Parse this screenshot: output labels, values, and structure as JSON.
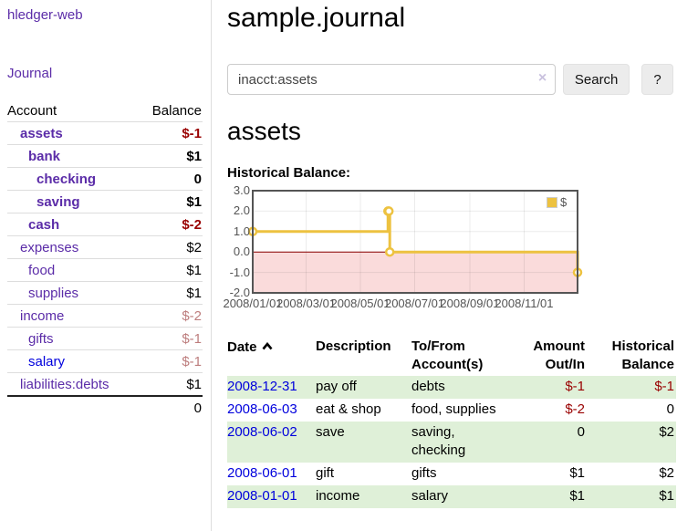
{
  "app": {
    "title": "hledger-web",
    "nav_journal": "Journal"
  },
  "sidebar": {
    "accounts_header": {
      "account": "Account",
      "balance": "Balance"
    },
    "accounts": [
      {
        "name": "assets",
        "balance": "$-1",
        "indent": 1,
        "bold": true,
        "balance_class": "amt-neg"
      },
      {
        "name": "bank",
        "balance": "$1",
        "indent": 2,
        "bold": true,
        "balance_class": "amt-normal"
      },
      {
        "name": "checking",
        "balance": "0",
        "indent": 3,
        "bold": true,
        "balance_class": "amt-normal"
      },
      {
        "name": "saving",
        "balance": "$1",
        "indent": 3,
        "bold": true,
        "balance_class": "amt-normal"
      },
      {
        "name": "cash",
        "balance": "$-2",
        "indent": 2,
        "bold": true,
        "balance_class": "amt-neg"
      },
      {
        "name": "expenses",
        "balance": "$2",
        "indent": 1,
        "bold": false,
        "balance_class": "amt-normal"
      },
      {
        "name": "food",
        "balance": "$1",
        "indent": 2,
        "bold": false,
        "balance_class": "amt-normal"
      },
      {
        "name": "supplies",
        "balance": "$1",
        "indent": 2,
        "bold": false,
        "balance_class": "amt-normal"
      },
      {
        "name": "income",
        "balance": "$-2",
        "indent": 1,
        "bold": false,
        "balance_class": "amt-muted"
      },
      {
        "name": "gifts",
        "balance": "$-1",
        "indent": 2,
        "bold": false,
        "balance_class": "amt-muted"
      },
      {
        "name": "salary",
        "balance": "$-1",
        "indent": 2,
        "bold": false,
        "balance_class": "amt-muted",
        "link_blue": true
      },
      {
        "name": "liabilities:debts",
        "balance": "$1",
        "indent": 1,
        "bold": false,
        "balance_class": "amt-normal"
      }
    ],
    "total": "0"
  },
  "header": {
    "title": "sample.journal"
  },
  "search": {
    "value": "inacct:assets",
    "clear_icon": "×",
    "button_label": "Search",
    "help_label": "?"
  },
  "account_page": {
    "title": "assets",
    "chart_label": "Historical Balance:"
  },
  "chart_data": {
    "type": "line",
    "step": true,
    "title": "Historical Balance:",
    "series": [
      {
        "name": "$",
        "color": "#edc240",
        "points": [
          {
            "date": "2008-01-01",
            "value": 1
          },
          {
            "date": "2008-06-01",
            "value": 2
          },
          {
            "date": "2008-06-02",
            "value": 2
          },
          {
            "date": "2008-06-03",
            "value": 0
          },
          {
            "date": "2008-12-31",
            "value": -1
          }
        ]
      }
    ],
    "xrange": [
      "2008-01-01",
      "2008-12-31"
    ],
    "ylim": [
      -2,
      3
    ],
    "yticks": [
      3,
      2,
      1,
      0,
      -1,
      -2
    ],
    "ytick_labels": [
      "3.0",
      "2.0",
      "1.0",
      "0.0",
      "-1.0",
      "-2.0"
    ],
    "xticks": [
      "2008-01-01",
      "2008-03-01",
      "2008-05-01",
      "2008-07-01",
      "2008-09-01",
      "2008-11-01"
    ],
    "xtick_labels": [
      "2008/01/01",
      "2008/03/01",
      "2008/05/01",
      "2008/07/01",
      "2008/09/01",
      "2008/11/01"
    ],
    "legend": {
      "position": "top-right",
      "label": "$"
    },
    "grid": true,
    "colors": {
      "line": "#edc240",
      "negative_fill": "#fadbdb",
      "zero_line": "#8b0000",
      "gridline": "rgba(0,0,0,0.08)",
      "border": "#555555"
    }
  },
  "register": {
    "columns": {
      "date": "Date",
      "description": "Description",
      "accounts": "To/From Account(s)",
      "amount": "Amount Out/In",
      "balance": "Historical Balance"
    },
    "sort": {
      "column": "date",
      "direction": "ascending"
    },
    "rows": [
      {
        "date": "2008-12-31",
        "description": "pay off",
        "accounts": "debts",
        "amount": "$-1",
        "balance": "$-1",
        "amount_class": "amt-neg",
        "balance_class": "amt-neg"
      },
      {
        "date": "2008-06-03",
        "description": "eat & shop",
        "accounts": "food, supplies",
        "amount": "$-2",
        "balance": "0",
        "amount_class": "amt-neg",
        "balance_class": "amt-normal"
      },
      {
        "date": "2008-06-02",
        "description": "save",
        "accounts": "saving, checking",
        "amount": "0",
        "balance": "$2",
        "amount_class": "amt-normal",
        "balance_class": "amt-normal"
      },
      {
        "date": "2008-06-01",
        "description": "gift",
        "accounts": "gifts",
        "amount": "$1",
        "balance": "$2",
        "amount_class": "amt-normal",
        "balance_class": "amt-normal"
      },
      {
        "date": "2008-01-01",
        "description": "income",
        "accounts": "salary",
        "amount": "$1",
        "balance": "$1",
        "amount_class": "amt-normal",
        "balance_class": "amt-normal"
      }
    ]
  }
}
